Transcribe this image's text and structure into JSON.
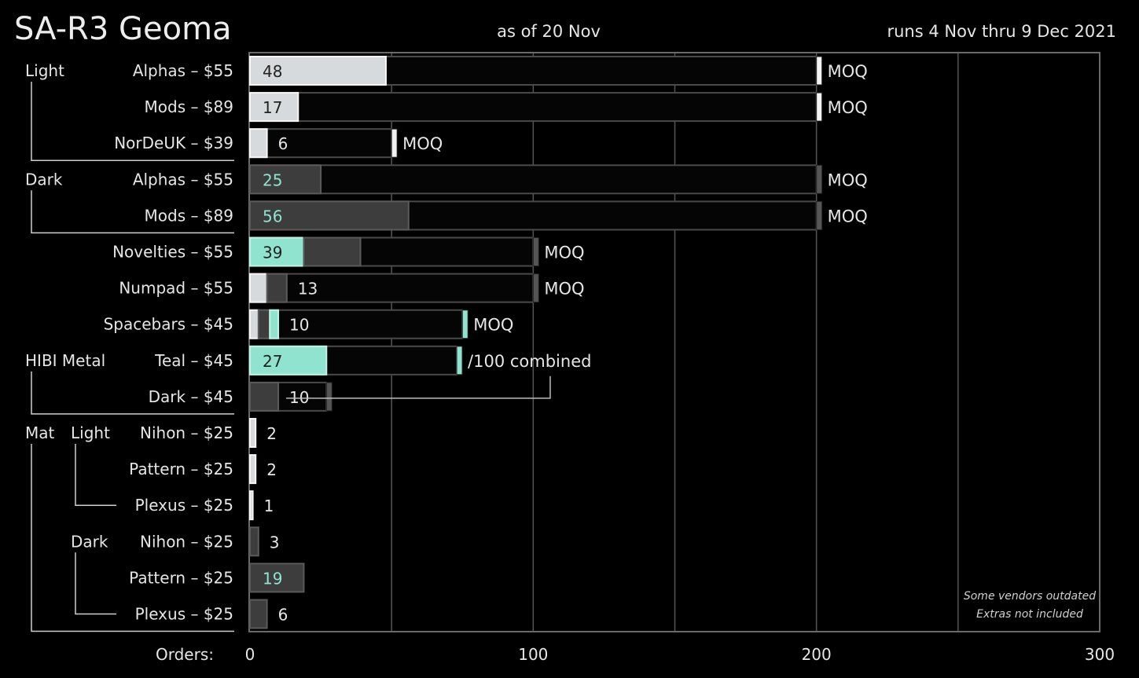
{
  "header": {
    "title": "SA-R3 Geoma",
    "as_of": "as of 20 Nov",
    "runs": "runs 4 Nov thru 9 Dec 2021"
  },
  "notes": [
    "Some vendors outdated",
    "Extras not included"
  ],
  "colors": {
    "light": "#d6dadd",
    "dark": "#3d3d3d",
    "teal": "#8fe3cf",
    "grid": "#555555",
    "frame": "#6a6a6a"
  },
  "chart_data": {
    "type": "bar",
    "orientation": "horizontal",
    "xlabel": "Orders:",
    "xlim": [
      0,
      300
    ],
    "xticks": [
      0,
      100,
      200,
      300
    ],
    "grid": true,
    "groups": [
      {
        "label": "Light",
        "rows": [
          0,
          2
        ]
      },
      {
        "label": "Dark",
        "rows": [
          3,
          4
        ]
      },
      {
        "label": "HIBI Metal",
        "rows": [
          8,
          9
        ]
      },
      {
        "label": "Mat",
        "rows": [
          10,
          15
        ]
      },
      {
        "label": "Light",
        "rows": [
          10,
          12
        ],
        "sub": true
      },
      {
        "label": "Dark",
        "rows": [
          13,
          15
        ],
        "sub": true
      }
    ],
    "rows": [
      {
        "label": "Alphas – $55",
        "value": 48,
        "moq": 200,
        "moq_label": "MOQ",
        "segments": [
          {
            "color": "light",
            "value": 48
          }
        ],
        "value_color": "#222222"
      },
      {
        "label": "Mods – $89",
        "value": 17,
        "moq": 200,
        "moq_label": "MOQ",
        "segments": [
          {
            "color": "light",
            "value": 17
          }
        ],
        "value_color": "#222222"
      },
      {
        "label": "NorDeUK – $39",
        "value": 6,
        "moq": 50,
        "moq_label": "MOQ",
        "segments": [
          {
            "color": "light",
            "value": 6
          }
        ],
        "value_color": "#e6e6e6"
      },
      {
        "label": "Alphas – $55",
        "value": 25,
        "moq": 200,
        "moq_label": "MOQ",
        "segments": [
          {
            "color": "dark",
            "value": 25
          }
        ],
        "value_color": "#8fe3cf"
      },
      {
        "label": "Mods – $89",
        "value": 56,
        "moq": 200,
        "moq_label": "MOQ",
        "segments": [
          {
            "color": "dark",
            "value": 56
          }
        ],
        "value_color": "#8fe3cf"
      },
      {
        "label": "Novelties – $55",
        "value": 39,
        "moq": 100,
        "moq_label": "MOQ",
        "segments": [
          {
            "color": "teal",
            "value": 19
          },
          {
            "color": "dark",
            "value": 20
          }
        ],
        "value_color": "#222222"
      },
      {
        "label": "Numpad – $55",
        "value": 13,
        "moq": 100,
        "moq_label": "MOQ",
        "segments": [
          {
            "color": "light",
            "value": 6
          },
          {
            "color": "dark",
            "value": 7
          }
        ],
        "value_color": "#e6e6e6"
      },
      {
        "label": "Spacebars – $45",
        "value": 10,
        "moq": 75,
        "moq_label": "MOQ",
        "segments": [
          {
            "color": "light",
            "value": 3
          },
          {
            "color": "dark",
            "value": 4
          },
          {
            "color": "teal",
            "value": 3
          }
        ],
        "value_color": "#e6e6e6"
      },
      {
        "label": "Teal – $45",
        "value": 27,
        "moq": 73,
        "moq_label": "/100 combined",
        "segments": [
          {
            "color": "teal",
            "value": 27
          }
        ],
        "value_color": "#222222"
      },
      {
        "label": "Dark – $45",
        "value": 10,
        "moq": 27,
        "moq_label": "",
        "segments": [
          {
            "color": "dark",
            "value": 10
          }
        ],
        "value_color": "#e6e6e6",
        "combined_with": 8
      },
      {
        "label": "Nihon – $25",
        "value": 2,
        "segments": [
          {
            "color": "light",
            "value": 2
          }
        ],
        "value_color": "#e6e6e6"
      },
      {
        "label": "Pattern – $25",
        "value": 2,
        "segments": [
          {
            "color": "light",
            "value": 2
          }
        ],
        "value_color": "#e6e6e6"
      },
      {
        "label": "Plexus – $25",
        "value": 1,
        "segments": [
          {
            "color": "light",
            "value": 1
          }
        ],
        "value_color": "#e6e6e6"
      },
      {
        "label": "Nihon – $25",
        "value": 3,
        "segments": [
          {
            "color": "dark",
            "value": 3
          }
        ],
        "value_color": "#e6e6e6"
      },
      {
        "label": "Pattern – $25",
        "value": 19,
        "segments": [
          {
            "color": "dark",
            "value": 19
          }
        ],
        "value_color": "#8fe3cf"
      },
      {
        "label": "Plexus – $25",
        "value": 6,
        "segments": [
          {
            "color": "dark",
            "value": 6
          }
        ],
        "value_color": "#e6e6e6"
      }
    ]
  }
}
